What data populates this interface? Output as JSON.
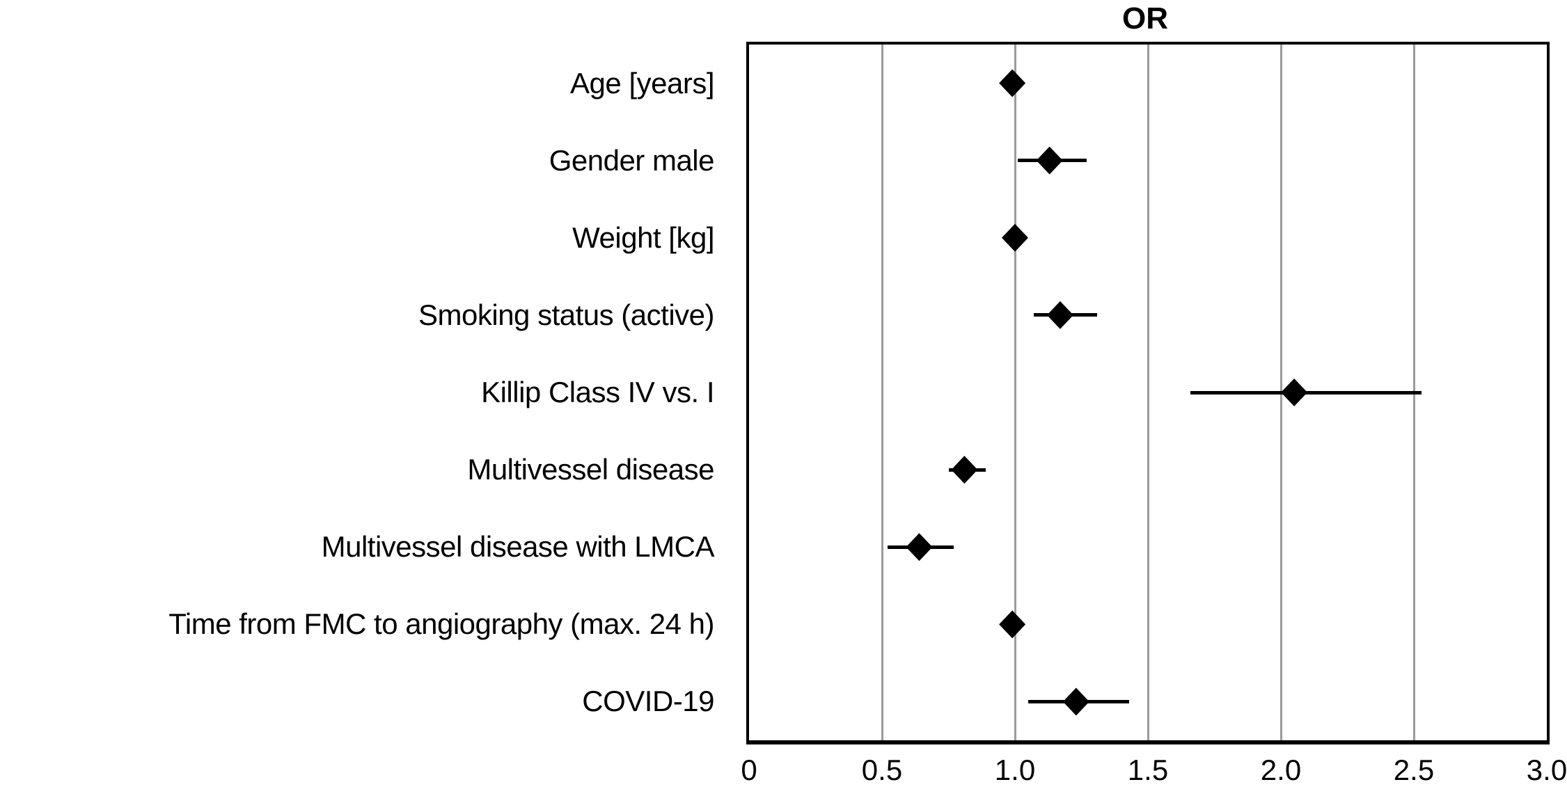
{
  "chart_data": {
    "type": "scatter",
    "subtype": "forest_plot",
    "title": "OR",
    "xlabel": "",
    "ylabel": "",
    "xlim": [
      0,
      3.0
    ],
    "x_ticks": [
      0,
      0.5,
      1.0,
      1.5,
      2.0,
      2.5,
      3.0
    ],
    "x_tick_labels": [
      "0",
      "0.5",
      "1.0",
      "1.5",
      "2.0",
      "2.5",
      "3.0"
    ],
    "gridlines_x": [
      0.5,
      1.0,
      1.5,
      2.0,
      2.5
    ],
    "grid": "vertical-only",
    "legend": "none",
    "marker": "filled-diamond",
    "rows": [
      {
        "label": "Age [years]",
        "or": 0.99,
        "ci_low": null,
        "ci_high": null
      },
      {
        "label": "Gender male",
        "or": 1.13,
        "ci_low": 1.01,
        "ci_high": 1.27
      },
      {
        "label": "Weight [kg]",
        "or": 1.0,
        "ci_low": null,
        "ci_high": null
      },
      {
        "label": "Smoking status (active)",
        "or": 1.17,
        "ci_low": 1.07,
        "ci_high": 1.31
      },
      {
        "label": "Killip Class IV vs. I",
        "or": 2.05,
        "ci_low": 1.66,
        "ci_high": 2.53
      },
      {
        "label": "Multivessel disease",
        "or": 0.81,
        "ci_low": 0.75,
        "ci_high": 0.89
      },
      {
        "label": "Multivessel disease with LMCA",
        "or": 0.64,
        "ci_low": 0.52,
        "ci_high": 0.77
      },
      {
        "label": "Time from FMC to angiography (max. 24 h)",
        "or": 0.99,
        "ci_low": null,
        "ci_high": null
      },
      {
        "label": "COVID-19",
        "or": 1.23,
        "ci_low": 1.05,
        "ci_high": 1.43
      }
    ],
    "colors": {
      "marker": "#000000",
      "ci_bar": "#000000",
      "gridline": "#9a9a9a",
      "frame": "#000000",
      "background": "#ffffff",
      "text": "#000000"
    }
  }
}
